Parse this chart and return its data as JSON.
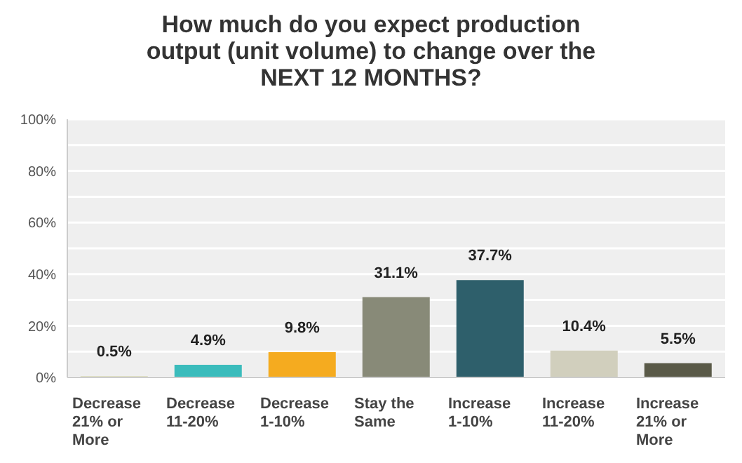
{
  "chart_data": {
    "type": "bar",
    "title": "How much do you expect production output (unit volume) to change over the NEXT 12 MONTHS?",
    "categories": [
      "Decrease 21% or More",
      "Decrease 11-20%",
      "Decrease 1-10%",
      "Stay the Same",
      "Increase 1-10%",
      "Increase 11-20%",
      "Increase 21% or More"
    ],
    "values": [
      0.5,
      4.9,
      9.8,
      31.1,
      37.7,
      10.4,
      5.5
    ],
    "value_labels": [
      "0.5%",
      "4.9%",
      "9.8%",
      "31.1%",
      "37.7%",
      "10.4%",
      "5.5%"
    ],
    "colors": [
      "#d9d9b0",
      "#3bbcbc",
      "#f5ab1f",
      "#888a78",
      "#2e5f6b",
      "#d1cfbd",
      "#5a5a48"
    ],
    "ylim": [
      0,
      100
    ],
    "yticks": [
      {
        "value": 0,
        "label": "0%"
      },
      {
        "value": 10,
        "label": null
      },
      {
        "value": 20,
        "label": "20%"
      },
      {
        "value": 30,
        "label": null
      },
      {
        "value": 40,
        "label": "40%"
      },
      {
        "value": 50,
        "label": null
      },
      {
        "value": 60,
        "label": "60%"
      },
      {
        "value": 70,
        "label": null
      },
      {
        "value": 80,
        "label": "80%"
      },
      {
        "value": 90,
        "label": null
      },
      {
        "value": 100,
        "label": "100%"
      }
    ],
    "grid": "y"
  }
}
